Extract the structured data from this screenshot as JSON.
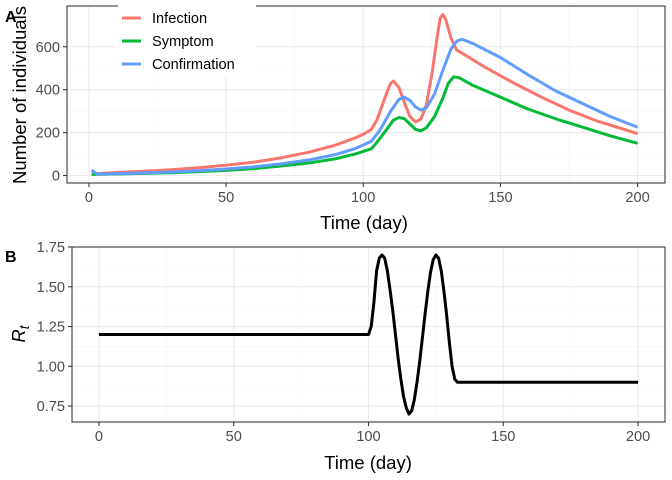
{
  "chart_data": [
    {
      "tag": "A",
      "type": "line",
      "xlabel": "Time (day)",
      "ylabel": "Number of individuals",
      "xlim": [
        -8,
        210
      ],
      "ylim": [
        -35,
        790
      ],
      "xticks": [
        0,
        50,
        100,
        150,
        200
      ],
      "yticks": [
        0,
        200,
        400,
        600
      ],
      "grid": true,
      "legend_position": "top-left (inside)",
      "series": [
        {
          "name": "Infection",
          "color": "#F8766D",
          "points": [
            [
              1,
              12
            ],
            [
              3,
              8
            ],
            [
              10,
              14
            ],
            [
              20,
              20
            ],
            [
              30,
              27
            ],
            [
              40,
              36
            ],
            [
              50,
              48
            ],
            [
              60,
              62
            ],
            [
              70,
              82
            ],
            [
              80,
              108
            ],
            [
              90,
              142
            ],
            [
              97,
              175
            ],
            [
              100,
              192
            ],
            [
              103,
              215
            ],
            [
              105,
              260
            ],
            [
              107,
              330
            ],
            [
              109,
              400
            ],
            [
              110,
              430
            ],
            [
              111,
              440
            ],
            [
              113,
              410
            ],
            [
              115,
              340
            ],
            [
              117,
              275
            ],
            [
              119,
              250
            ],
            [
              121,
              262
            ],
            [
              123,
              330
            ],
            [
              125,
              470
            ],
            [
              127,
              650
            ],
            [
              128,
              730
            ],
            [
              129,
              750
            ],
            [
              130,
              730
            ],
            [
              132,
              640
            ],
            [
              134,
              585
            ],
            [
              138,
              555
            ],
            [
              145,
              500
            ],
            [
              155,
              430
            ],
            [
              165,
              365
            ],
            [
              175,
              305
            ],
            [
              185,
              255
            ],
            [
              195,
              215
            ],
            [
              200,
              195
            ]
          ]
        },
        {
          "name": "Symptom",
          "color": "#00BA38",
          "points": [
            [
              1,
              5
            ],
            [
              10,
              7
            ],
            [
              20,
              10
            ],
            [
              30,
              13
            ],
            [
              40,
              18
            ],
            [
              50,
              24
            ],
            [
              60,
              32
            ],
            [
              70,
              44
            ],
            [
              80,
              58
            ],
            [
              90,
              78
            ],
            [
              97,
              100
            ],
            [
              100,
              112
            ],
            [
              103,
              125
            ],
            [
              105,
              155
            ],
            [
              108,
              205
            ],
            [
              111,
              258
            ],
            [
              113,
              270
            ],
            [
              115,
              265
            ],
            [
              117,
              240
            ],
            [
              119,
              215
            ],
            [
              121,
              208
            ],
            [
              123,
              222
            ],
            [
              126,
              275
            ],
            [
              129,
              360
            ],
            [
              131,
              430
            ],
            [
              133,
              460
            ],
            [
              135,
              455
            ],
            [
              140,
              420
            ],
            [
              150,
              365
            ],
            [
              160,
              310
            ],
            [
              170,
              265
            ],
            [
              180,
              225
            ],
            [
              190,
              185
            ],
            [
              200,
              150
            ]
          ]
        },
        {
          "name": "Confirmation",
          "color": "#619CFF",
          "points": [
            [
              1,
              25
            ],
            [
              3,
              6
            ],
            [
              10,
              8
            ],
            [
              20,
              12
            ],
            [
              30,
              16
            ],
            [
              40,
              22
            ],
            [
              50,
              30
            ],
            [
              60,
              40
            ],
            [
              70,
              54
            ],
            [
              80,
              72
            ],
            [
              90,
              98
            ],
            [
              97,
              125
            ],
            [
              100,
              142
            ],
            [
              103,
              160
            ],
            [
              106,
              210
            ],
            [
              110,
              300
            ],
            [
              113,
              355
            ],
            [
              115,
              365
            ],
            [
              117,
              350
            ],
            [
              119,
              320
            ],
            [
              121,
              305
            ],
            [
              123,
              315
            ],
            [
              126,
              380
            ],
            [
              129,
              490
            ],
            [
              132,
              590
            ],
            [
              134,
              625
            ],
            [
              136,
              635
            ],
            [
              140,
              615
            ],
            [
              150,
              550
            ],
            [
              160,
              470
            ],
            [
              170,
              395
            ],
            [
              180,
              335
            ],
            [
              190,
              275
            ],
            [
              200,
              225
            ]
          ]
        }
      ]
    },
    {
      "tag": "B",
      "type": "line",
      "xlabel": "Time (day)",
      "ylabel_main": "R",
      "ylabel_sub": "t",
      "xlim": [
        -10,
        210
      ],
      "ylim": [
        0.65,
        1.75
      ],
      "xticks": [
        0,
        50,
        100,
        150,
        200
      ],
      "yticks": [
        "0.75",
        "1.00",
        "1.25",
        "1.50",
        "1.75"
      ],
      "grid": true,
      "series": [
        {
          "name": "",
          "color": "#000000",
          "points": [
            [
              0,
              1.2
            ],
            [
              100,
              1.2
            ],
            [
              101,
              1.25
            ],
            [
              102,
              1.4
            ],
            [
              103,
              1.6
            ],
            [
              104,
              1.68
            ],
            [
              105,
              1.7
            ],
            [
              106,
              1.68
            ],
            [
              107,
              1.6
            ],
            [
              108,
              1.48
            ],
            [
              109,
              1.35
            ],
            [
              110,
              1.2
            ],
            [
              111,
              1.05
            ],
            [
              112,
              0.92
            ],
            [
              113,
              0.81
            ],
            [
              114,
              0.74
            ],
            [
              115,
              0.7
            ],
            [
              116,
              0.72
            ],
            [
              117,
              0.79
            ],
            [
              118,
              0.9
            ],
            [
              119,
              1.03
            ],
            [
              120,
              1.18
            ],
            [
              121,
              1.33
            ],
            [
              122,
              1.47
            ],
            [
              123,
              1.59
            ],
            [
              124,
              1.67
            ],
            [
              125,
              1.7
            ],
            [
              126,
              1.68
            ],
            [
              127,
              1.6
            ],
            [
              128,
              1.47
            ],
            [
              129,
              1.32
            ],
            [
              130,
              1.15
            ],
            [
              131,
              1.0
            ],
            [
              132,
              0.92
            ],
            [
              133,
              0.9
            ],
            [
              200,
              0.9
            ]
          ]
        }
      ]
    }
  ]
}
